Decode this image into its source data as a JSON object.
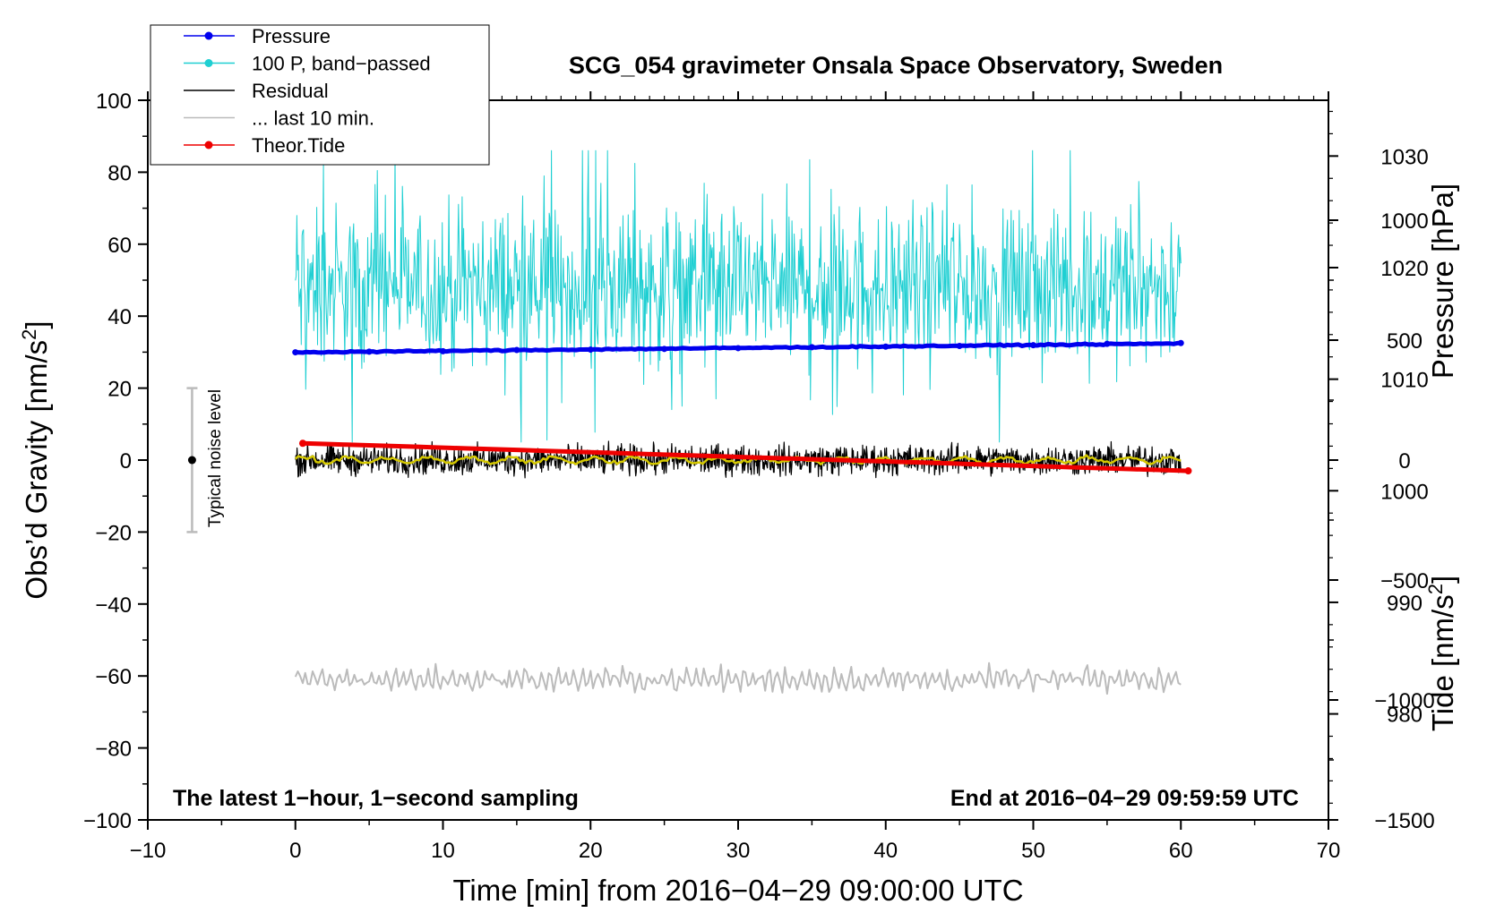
{
  "chart_data": {
    "type": "line",
    "title": "SCG_054 gravimeter Onsala Space Observatory, Sweden",
    "xlabel": "Time [min] from 2016−04−29 09:00:00 UTC",
    "ylabel_left_prefix": "Obs’d Gravity [nm/s",
    "ylabel_left_exp": "2",
    "ylabel_left_suffix": "]",
    "ylabel_right_pressure": "Pressure [hPa]",
    "ylabel_right_tide_prefix": "Tide [nm/s",
    "ylabel_right_tide_exp": "2",
    "ylabel_right_tide_suffix": "]",
    "xlim": [
      -10,
      70
    ],
    "ylim": [
      -100,
      100
    ],
    "pressure_ylim": [
      970.5,
      1035
    ],
    "tide_ylim": [
      -1500,
      1500
    ],
    "x_ticks": [
      "−10",
      "0",
      "10",
      "20",
      "30",
      "40",
      "50",
      "60",
      "70"
    ],
    "x_tick_values": [
      -10,
      0,
      10,
      20,
      30,
      40,
      50,
      60,
      70
    ],
    "y_ticks": [
      "100",
      "80",
      "60",
      "40",
      "20",
      "0",
      "−20",
      "−40",
      "−60",
      "−80",
      "−100"
    ],
    "y_tick_values": [
      100,
      80,
      60,
      40,
      20,
      0,
      -20,
      -40,
      -60,
      -80,
      -100
    ],
    "pressure_ticks": [
      "1030",
      "1020",
      "1010",
      "1000",
      "990",
      "980"
    ],
    "pressure_tick_values": [
      1030,
      1020,
      1010,
      1000,
      990,
      980
    ],
    "tide_ticks": [
      "1000",
      "500",
      "0",
      "−500",
      "−1000",
      "−1500"
    ],
    "tide_tick_values": [
      1000,
      500,
      0,
      -500,
      -1000,
      -1500
    ],
    "legend": [
      {
        "label": "Pressure",
        "color": "#0000ee",
        "marker": true
      },
      {
        "label": "100 P, band−passed",
        "color": "#1ecfd2",
        "marker": true
      },
      {
        "label": "Residual",
        "color": "#000000",
        "marker": false
      },
      {
        "label": "... last 10 min.",
        "color": "#bbbbbb",
        "marker": false
      },
      {
        "label": "Theor.Tide",
        "color": "#ee0000",
        "marker": true
      }
    ],
    "series": [
      {
        "name": "Pressure",
        "axis": "pressure",
        "x": [
          0,
          60
        ],
        "values": [
          1012.4,
          1013.2
        ]
      },
      {
        "name": "100 P, band−passed",
        "axis": "gravity",
        "x_range": [
          0,
          60
        ],
        "mean": 48,
        "spread": 18,
        "min": 5,
        "max": 86
      },
      {
        "name": "Residual",
        "axis": "gravity",
        "x_range": [
          0,
          60
        ],
        "mean": 0,
        "spread": 3.5,
        "min": -8,
        "max": 8
      },
      {
        "name": "Residual smoothed",
        "axis": "gravity",
        "x_range": [
          0,
          60
        ],
        "mean": 0,
        "spread": 1
      },
      {
        "name": "... last 10 min.",
        "axis": "gravity",
        "x_range": [
          0,
          60
        ],
        "mean": -61,
        "spread": 3,
        "min": -70,
        "max": -56
      },
      {
        "name": "Theor.Tide",
        "axis": "tide",
        "x": [
          0.5,
          60.5
        ],
        "values": [
          70,
          -45
        ]
      }
    ],
    "noise_bar": {
      "label": "Typical noise level",
      "x": -7,
      "center": 0,
      "low": -20,
      "high": 20
    },
    "left_annotation": "The latest 1−hour, 1−second sampling",
    "right_annotation": "End at 2016−04−29 09:59:59 UTC"
  }
}
